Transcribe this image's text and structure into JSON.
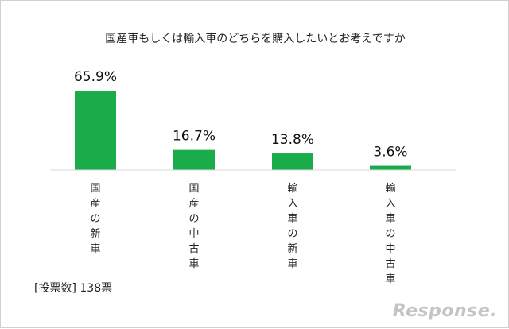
{
  "chart_data": {
    "type": "bar",
    "title": "国産車もしくは輸入車のどちらを購入したいとお考えですか",
    "categories": [
      "国産の新車",
      "国産の中古車",
      "輸入車の新車",
      "輸入車の中古車"
    ],
    "values": [
      65.9,
      16.7,
      13.8,
      3.6
    ],
    "value_labels": [
      "65.9%",
      "16.7%",
      "13.8%",
      "3.6%"
    ],
    "unit": "%",
    "ylim": [
      0,
      70
    ],
    "bar_color": "#1aac4b",
    "grid": false,
    "legend": "none"
  },
  "footnote": "[投票数] 138票",
  "logo_text": "Response."
}
